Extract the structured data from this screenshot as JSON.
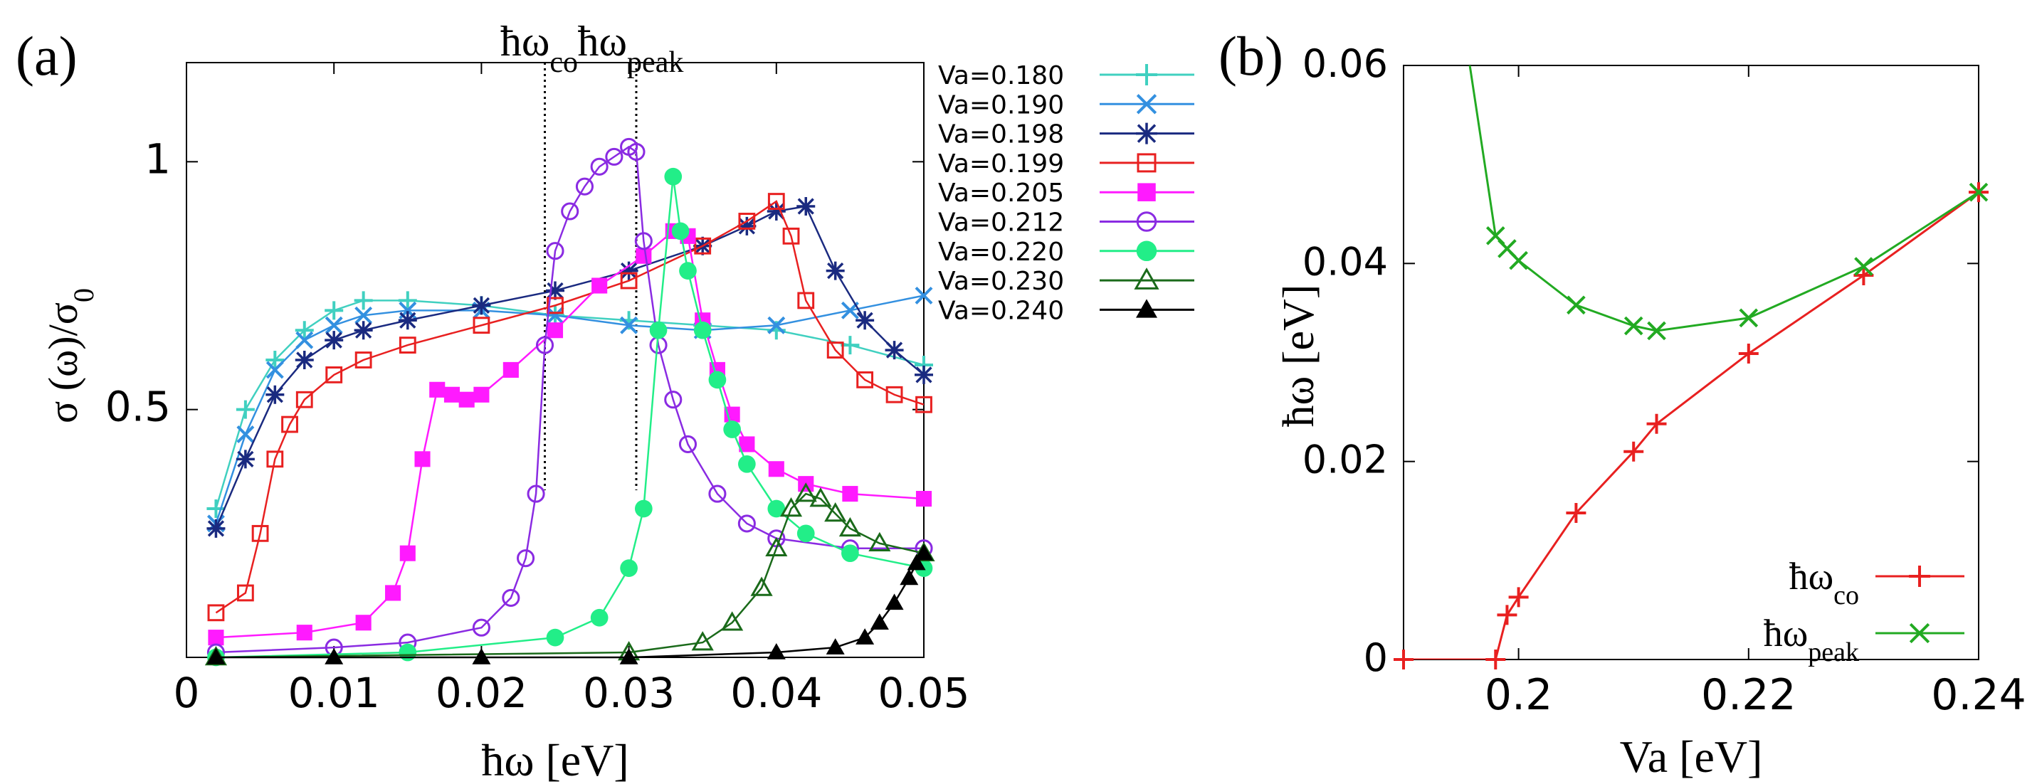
{
  "chart_data": [
    {
      "type": "line",
      "panel_label": "(a)",
      "title": "",
      "xlabel": "ħω [eV]",
      "ylabel": "σ (ω)/σ0",
      "ylabel_main": "σ (ω)/σ",
      "ylabel_sub": "0",
      "xlim": [
        0,
        0.05
      ],
      "ylim": [
        0,
        1.2
      ],
      "xticks": [
        0,
        0.01,
        0.02,
        0.03,
        0.04,
        0.05
      ],
      "xtick_labels": [
        "0",
        "0.01",
        "0.02",
        "0.03",
        "0.04",
        "0.05"
      ],
      "yticks": [
        0.5,
        1
      ],
      "ytick_labels": [
        "0.5",
        "1"
      ],
      "grid": false,
      "legend_position": "right (outside)",
      "annotations": [
        {
          "text": "ħωco",
          "main": "ħω",
          "sub": "co",
          "x": 0.0243
        },
        {
          "text": "ħωpeak",
          "main": "ħω",
          "sub": "peak",
          "x": 0.0305
        }
      ],
      "series": [
        {
          "name": "Va=0.180",
          "color": "#40d0c0",
          "marker": "plus",
          "x": [
            0.002,
            0.004,
            0.006,
            0.008,
            0.01,
            0.012,
            0.015,
            0.02,
            0.025,
            0.03,
            0.035,
            0.04,
            0.045,
            0.05
          ],
          "y": [
            0.3,
            0.5,
            0.6,
            0.66,
            0.7,
            0.72,
            0.72,
            0.71,
            0.69,
            0.68,
            0.67,
            0.66,
            0.63,
            0.59
          ]
        },
        {
          "name": "Va=0.190",
          "color": "#3390e0",
          "marker": "x",
          "x": [
            0.002,
            0.004,
            0.006,
            0.008,
            0.01,
            0.012,
            0.015,
            0.02,
            0.025,
            0.03,
            0.035,
            0.04,
            0.045,
            0.05
          ],
          "y": [
            0.27,
            0.45,
            0.58,
            0.64,
            0.67,
            0.69,
            0.7,
            0.7,
            0.69,
            0.67,
            0.66,
            0.67,
            0.7,
            0.73
          ]
        },
        {
          "name": "Va=0.198",
          "color": "#1a2a80",
          "marker": "star",
          "x": [
            0.002,
            0.004,
            0.006,
            0.008,
            0.01,
            0.012,
            0.015,
            0.02,
            0.025,
            0.03,
            0.035,
            0.038,
            0.04,
            0.042,
            0.044,
            0.046,
            0.048,
            0.05
          ],
          "y": [
            0.26,
            0.4,
            0.53,
            0.6,
            0.64,
            0.66,
            0.68,
            0.71,
            0.74,
            0.78,
            0.83,
            0.87,
            0.9,
            0.91,
            0.78,
            0.68,
            0.62,
            0.57
          ]
        },
        {
          "name": "Va=0.199",
          "color": "#e82020",
          "marker": "open-square",
          "x": [
            0.002,
            0.004,
            0.005,
            0.006,
            0.007,
            0.008,
            0.01,
            0.012,
            0.015,
            0.02,
            0.025,
            0.03,
            0.035,
            0.038,
            0.04,
            0.041,
            0.042,
            0.044,
            0.046,
            0.048,
            0.05
          ],
          "y": [
            0.09,
            0.13,
            0.25,
            0.4,
            0.47,
            0.52,
            0.57,
            0.6,
            0.63,
            0.67,
            0.71,
            0.76,
            0.83,
            0.88,
            0.92,
            0.85,
            0.72,
            0.62,
            0.56,
            0.53,
            0.51
          ]
        },
        {
          "name": "Va=0.205",
          "color": "#ff1aff",
          "marker": "filled-square",
          "x": [
            0.002,
            0.008,
            0.012,
            0.014,
            0.015,
            0.016,
            0.017,
            0.018,
            0.019,
            0.02,
            0.022,
            0.025,
            0.028,
            0.031,
            0.033,
            0.034,
            0.035,
            0.036,
            0.037,
            0.038,
            0.04,
            0.042,
            0.045,
            0.05
          ],
          "y": [
            0.04,
            0.05,
            0.07,
            0.13,
            0.21,
            0.4,
            0.54,
            0.53,
            0.52,
            0.53,
            0.58,
            0.66,
            0.75,
            0.81,
            0.86,
            0.85,
            0.68,
            0.58,
            0.49,
            0.43,
            0.38,
            0.35,
            0.33,
            0.32
          ]
        },
        {
          "name": "Va=0.212",
          "color": "#8a2be2",
          "marker": "open-circle",
          "x": [
            0.002,
            0.01,
            0.015,
            0.02,
            0.022,
            0.023,
            0.0237,
            0.0243,
            0.025,
            0.026,
            0.027,
            0.028,
            0.029,
            0.03,
            0.0305,
            0.031,
            0.032,
            0.033,
            0.034,
            0.036,
            0.038,
            0.04,
            0.045,
            0.05
          ],
          "y": [
            0.01,
            0.02,
            0.03,
            0.06,
            0.12,
            0.2,
            0.33,
            0.63,
            0.82,
            0.9,
            0.95,
            0.99,
            1.01,
            1.03,
            1.02,
            0.84,
            0.63,
            0.52,
            0.43,
            0.33,
            0.27,
            0.24,
            0.22,
            0.22
          ]
        },
        {
          "name": "Va=0.220",
          "color": "#22ee88",
          "marker": "filled-circle",
          "x": [
            0.002,
            0.015,
            0.025,
            0.028,
            0.03,
            0.031,
            0.032,
            0.033,
            0.0335,
            0.034,
            0.035,
            0.036,
            0.037,
            0.038,
            0.04,
            0.042,
            0.045,
            0.05
          ],
          "y": [
            0.0,
            0.01,
            0.04,
            0.08,
            0.18,
            0.3,
            0.66,
            0.97,
            0.86,
            0.78,
            0.66,
            0.56,
            0.46,
            0.39,
            0.3,
            0.25,
            0.21,
            0.18
          ]
        },
        {
          "name": "Va=0.230",
          "color": "#1a6a1a",
          "marker": "open-triangle",
          "x": [
            0.002,
            0.03,
            0.035,
            0.037,
            0.039,
            0.04,
            0.041,
            0.042,
            0.043,
            0.044,
            0.045,
            0.047,
            0.05
          ],
          "y": [
            0.0,
            0.01,
            0.03,
            0.07,
            0.14,
            0.22,
            0.3,
            0.33,
            0.32,
            0.29,
            0.26,
            0.23,
            0.21
          ]
        },
        {
          "name": "Va=0.240",
          "color": "#000000",
          "marker": "filled-triangle",
          "x": [
            0.002,
            0.01,
            0.02,
            0.03,
            0.04,
            0.044,
            0.046,
            0.047,
            0.048,
            0.049,
            0.0495,
            0.05
          ],
          "y": [
            0.0,
            0.0,
            0.0,
            0.0,
            0.01,
            0.02,
            0.04,
            0.07,
            0.11,
            0.16,
            0.19,
            0.21
          ]
        }
      ]
    },
    {
      "type": "line",
      "panel_label": "(b)",
      "title": "",
      "xlabel": "Va [eV]",
      "ylabel": "ħω [eV]",
      "xlim": [
        0.19,
        0.24
      ],
      "ylim": [
        0,
        0.06
      ],
      "xticks": [
        0.2,
        0.22,
        0.24
      ],
      "xtick_labels": [
        "0.2",
        "0.22",
        "0.24"
      ],
      "yticks": [
        0,
        0.02,
        0.04,
        0.06
      ],
      "ytick_labels": [
        "0",
        "0.02",
        "0.04",
        "0.06"
      ],
      "grid": false,
      "legend_position": "bottom-right",
      "series": [
        {
          "name": "ħωco",
          "label_main": "ħω",
          "label_sub": "co",
          "color": "#e82020",
          "marker": "plus",
          "x": [
            0.19,
            0.198,
            0.199,
            0.2,
            0.205,
            0.21,
            0.212,
            0.22,
            0.23,
            0.24
          ],
          "y": [
            0.0,
            0.0,
            0.0045,
            0.0063,
            0.0148,
            0.021,
            0.0238,
            0.0309,
            0.0388,
            0.0472
          ]
        },
        {
          "name": "ħωpeak",
          "label_main": "ħω",
          "label_sub": "peak",
          "color": "#22aa22",
          "marker": "x",
          "x": [
            0.1955,
            0.198,
            0.199,
            0.2,
            0.205,
            0.21,
            0.212,
            0.22,
            0.23,
            0.24
          ],
          "y": [
            0.062,
            0.0428,
            0.0415,
            0.0403,
            0.0358,
            0.0337,
            0.0332,
            0.0345,
            0.0397,
            0.0472
          ]
        }
      ]
    }
  ]
}
